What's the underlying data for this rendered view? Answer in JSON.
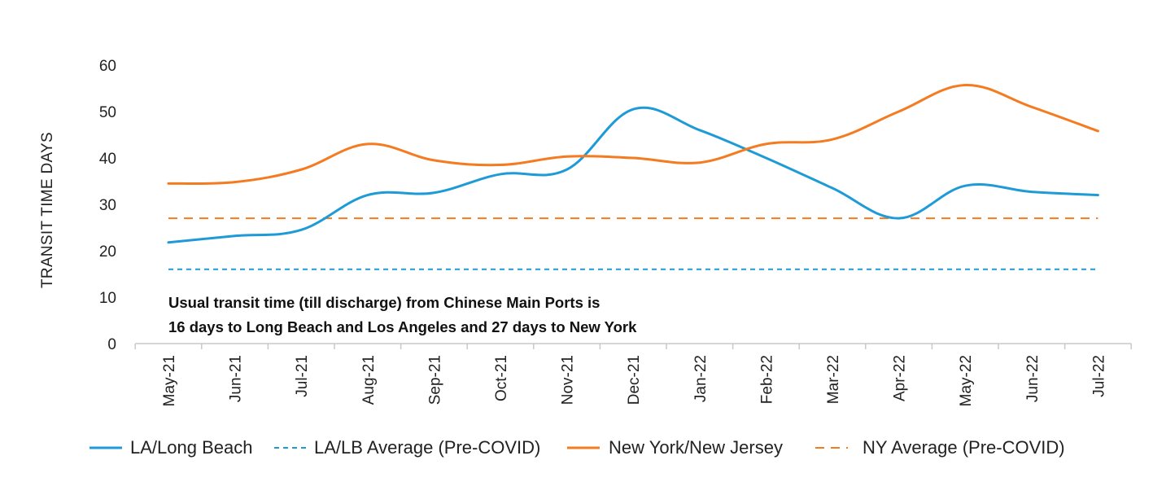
{
  "chart_data": {
    "type": "line",
    "title": "",
    "xlabel": "",
    "ylabel": "TRANSIT TIME DAYS",
    "ylim": [
      0,
      60
    ],
    "yticks": [
      0,
      10,
      20,
      30,
      40,
      50,
      60
    ],
    "grid": false,
    "legend_position": "bottom",
    "categories": [
      "May-21",
      "Jun-21",
      "Jul-21",
      "Aug-21",
      "Sep-21",
      "Oct-21",
      "Nov-21",
      "Dec-21",
      "Jan-22",
      "Feb-22",
      "Mar-22",
      "Apr-22",
      "May-22",
      "Jun-22",
      "Jul-22"
    ],
    "series": [
      {
        "name": "LA/Long Beach",
        "style": "solid",
        "color": "#1E9BD7",
        "values": [
          21.8,
          23.2,
          24.5,
          32.0,
          32.5,
          36.5,
          37.5,
          50.5,
          46.0,
          40.0,
          33.5,
          27.0,
          34.0,
          32.7,
          32.0
        ]
      },
      {
        "name": "LA/LB Average (Pre-COVID)",
        "style": "dashed",
        "color": "#1E9BD7",
        "values": [
          16,
          16,
          16,
          16,
          16,
          16,
          16,
          16,
          16,
          16,
          16,
          16,
          16,
          16,
          16
        ]
      },
      {
        "name": "New York/New Jersey",
        "style": "solid",
        "color": "#F47B20",
        "values": [
          34.5,
          34.8,
          37.5,
          43.0,
          39.5,
          38.5,
          40.3,
          40.0,
          39.0,
          43.0,
          44.0,
          50.0,
          55.7,
          51.0,
          45.8
        ]
      },
      {
        "name": "NY Average (Pre-COVID)",
        "style": "dashed",
        "color": "#F47B20",
        "values": [
          27,
          27,
          27,
          27,
          27,
          27,
          27,
          27,
          27,
          27,
          27,
          27,
          27,
          27,
          27
        ]
      }
    ],
    "annotation": {
      "line1": "Usual transit time (till discharge) from Chinese Main Ports is",
      "line2": "16 days to Long Beach and Los Angeles and 27 days to New York"
    }
  }
}
